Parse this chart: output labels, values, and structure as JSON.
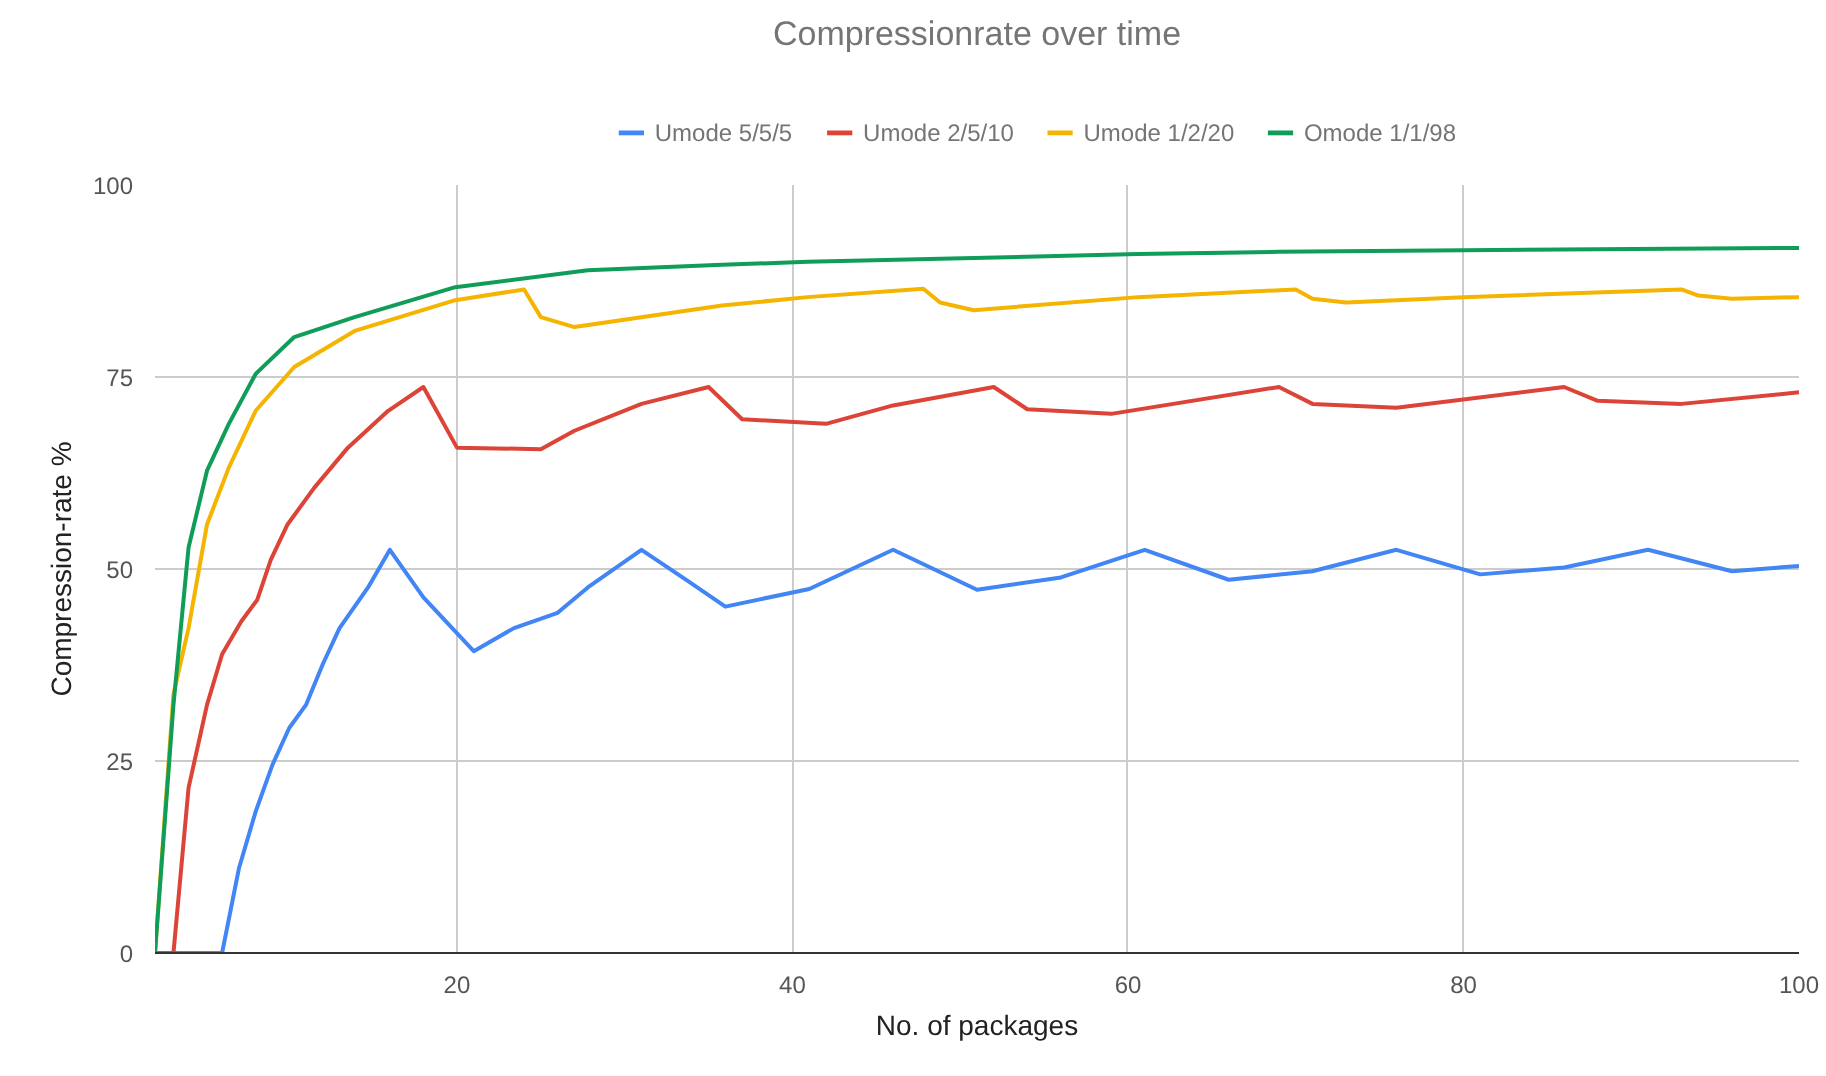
{
  "chart_data": {
    "type": "line",
    "title": "Compressionrate over time",
    "xlabel": "No. of packages",
    "ylabel": "Compression-rate %",
    "xlim": [
      2,
      100
    ],
    "xticks": [
      20,
      40,
      60,
      80,
      100
    ],
    "ylim": [
      0,
      100
    ],
    "yticks": [
      0,
      25,
      50,
      75,
      100
    ],
    "grid": true,
    "legend": "top",
    "line_style": "solid",
    "marker": "none",
    "series": [
      {
        "name": "Umode 5/5/5",
        "color": "#4285f4",
        "x": [
          2,
          6,
          7,
          8,
          9,
          10,
          11,
          12,
          13,
          14.7,
          16,
          18,
          21,
          23.4,
          26,
          27.8,
          31,
          33.8,
          36,
          41,
          46,
          51,
          56,
          61,
          66,
          71,
          76,
          81,
          86,
          91,
          96,
          100
        ],
        "values": [
          0,
          0,
          11,
          18.4,
          24.5,
          29.3,
          32.3,
          37.6,
          42.3,
          47.6,
          52.5,
          46.3,
          39.3,
          42.3,
          44.3,
          47.6,
          52.5,
          48.4,
          45.1,
          47.4,
          52.5,
          47.3,
          48.9,
          52.5,
          48.6,
          49.7,
          52.5,
          49.3,
          50.2,
          52.5,
          49.7,
          50.4
        ]
      },
      {
        "name": "Umode 2/5/10",
        "color": "#db4437",
        "x": [
          2,
          3.1,
          4,
          5.1,
          6,
          7.15,
          8.1,
          8.9,
          9.9,
          11.5,
          13.5,
          15.9,
          18,
          20,
          25,
          27,
          31,
          35,
          37,
          42,
          46,
          52,
          54,
          59,
          69,
          71,
          76,
          86,
          88,
          93,
          100
        ],
        "values": [
          0,
          0,
          21.5,
          32.3,
          38.9,
          43.2,
          46,
          51.2,
          55.8,
          60.6,
          65.8,
          70.6,
          73.7,
          65.8,
          65.6,
          68,
          71.5,
          73.7,
          69.5,
          68.9,
          71.3,
          73.7,
          70.8,
          70.2,
          73.7,
          71.5,
          71,
          73.7,
          71.9,
          71.5,
          73
        ]
      },
      {
        "name": "Umode 1/2/20",
        "color": "#f4b400",
        "x": [
          2,
          3.1,
          4,
          5.1,
          6.4,
          8,
          10.3,
          13.9,
          19.9,
          24,
          25,
          27,
          35.8,
          40.9,
          47.8,
          48.8,
          50.8,
          60.6,
          70,
          71,
          73,
          80,
          93,
          94,
          96,
          100
        ],
        "values": [
          0,
          33.7,
          42.3,
          55.8,
          63.2,
          70.6,
          76.3,
          81,
          85,
          86.4,
          82.8,
          81.5,
          84.3,
          85.4,
          86.5,
          84.7,
          83.7,
          85.4,
          86.4,
          85.2,
          84.7,
          85.4,
          86.4,
          85.6,
          85.2,
          85.4
        ]
      },
      {
        "name": "Omode 1/1/98",
        "color": "#0f9d58",
        "x": [
          2,
          3.1,
          4,
          5.1,
          6.4,
          8,
          10.3,
          13.9,
          19.9,
          27.8,
          35.8,
          40.9,
          60.6,
          69,
          80,
          100
        ],
        "values": [
          0,
          32.3,
          52.8,
          62.8,
          68.9,
          75.4,
          80.2,
          82.8,
          86.7,
          88.9,
          89.6,
          90,
          91,
          91.3,
          91.5,
          91.8
        ]
      }
    ]
  }
}
